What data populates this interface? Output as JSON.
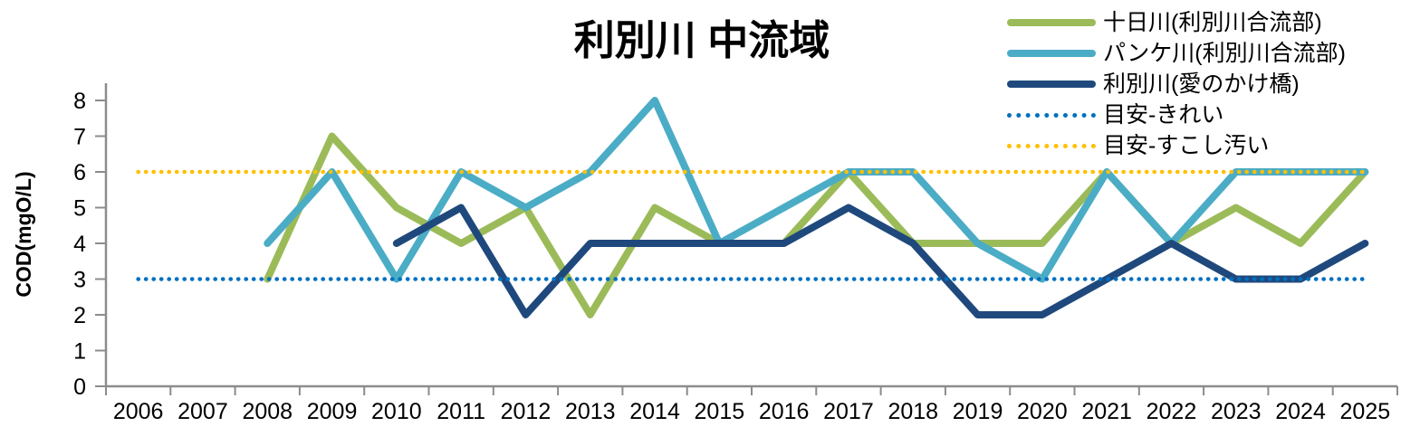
{
  "title": "利別川 中流域",
  "y_axis": {
    "label": "COD(mgO/L)",
    "ticks": [
      "0",
      "1",
      "2",
      "3",
      "4",
      "5",
      "6",
      "7",
      "8"
    ]
  },
  "x_axis": {
    "ticks": [
      "2006",
      "2007",
      "2008",
      "2009",
      "2010",
      "2011",
      "2012",
      "2013",
      "2014",
      "2015",
      "2016",
      "2017",
      "2018",
      "2019",
      "2020",
      "2021",
      "2022",
      "2023",
      "2024",
      "2025"
    ]
  },
  "legend": {
    "position": "top-right"
  },
  "colors": {
    "axis": "#8C8C8C",
    "text": "#000000",
    "series_green": "#9BBB59",
    "series_teal": "#4BACC6",
    "series_navy": "#1F497D",
    "guide_clean_blue": "#0070C0",
    "guide_dirty_yellow": "#FFC000"
  },
  "chart_data": {
    "type": "line",
    "title": "利別川 中流域",
    "xlabel": "",
    "ylabel": "COD(mgO/L)",
    "ylim": [
      0,
      8
    ],
    "grid": false,
    "legend_position": "top-right",
    "categories": [
      "2006",
      "2007",
      "2008",
      "2009",
      "2010",
      "2011",
      "2012",
      "2013",
      "2014",
      "2015",
      "2016",
      "2017",
      "2018",
      "2019",
      "2020",
      "2021",
      "2022",
      "2023",
      "2024",
      "2025"
    ],
    "series": [
      {
        "name": "十日川(利別川合流部)",
        "color": "#9BBB59",
        "line_style": "solid",
        "values": [
          null,
          null,
          3,
          7,
          5,
          4,
          5,
          2,
          5,
          4,
          4,
          6,
          4,
          4,
          4,
          6,
          4,
          5,
          4,
          6
        ]
      },
      {
        "name": "パンケ川(利別川合流部)",
        "color": "#4BACC6",
        "line_style": "solid",
        "values": [
          null,
          null,
          4,
          6,
          3,
          6,
          5,
          6,
          8,
          4,
          5,
          6,
          6,
          4,
          3,
          6,
          4,
          6,
          6,
          6
        ]
      },
      {
        "name": "利別川(愛のかけ橋)",
        "color": "#1F497D",
        "line_style": "solid",
        "values": [
          null,
          null,
          null,
          null,
          4,
          5,
          2,
          4,
          4,
          4,
          4,
          5,
          4,
          2,
          2,
          3,
          4,
          3,
          3,
          4
        ]
      },
      {
        "name": "目安-きれい",
        "color": "#0070C0",
        "line_style": "dotted",
        "values": [
          3,
          3,
          3,
          3,
          3,
          3,
          3,
          3,
          3,
          3,
          3,
          3,
          3,
          3,
          3,
          3,
          3,
          3,
          3,
          3
        ]
      },
      {
        "name": "目安-すこし汚い",
        "color": "#FFC000",
        "line_style": "dotted",
        "values": [
          6,
          6,
          6,
          6,
          6,
          6,
          6,
          6,
          6,
          6,
          6,
          6,
          6,
          6,
          6,
          6,
          6,
          6,
          6,
          6
        ]
      }
    ]
  }
}
